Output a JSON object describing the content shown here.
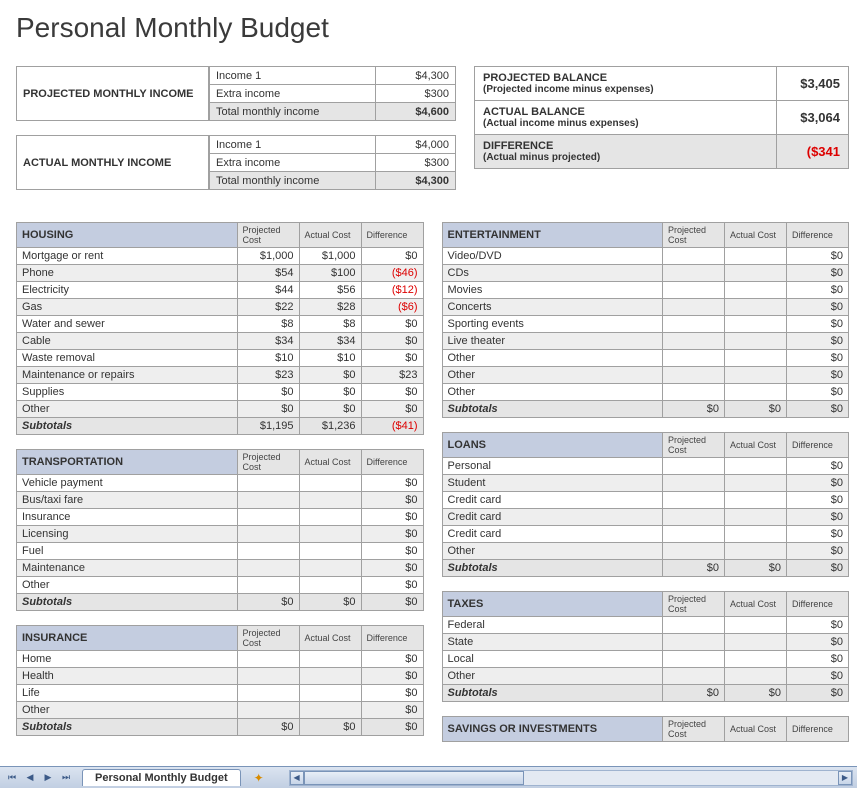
{
  "title": "Personal Monthly Budget",
  "projected_income": {
    "label": "PROJECTED MONTHLY INCOME",
    "rows": [
      {
        "label": "Income 1",
        "value": "$4,300"
      },
      {
        "label": "Extra income",
        "value": "$300"
      }
    ],
    "total_label": "Total monthly income",
    "total_value": "$4,600"
  },
  "actual_income": {
    "label": "ACTUAL MONTHLY INCOME",
    "rows": [
      {
        "label": "Income 1",
        "value": "$4,000"
      },
      {
        "label": "Extra income",
        "value": "$300"
      }
    ],
    "total_label": "Total monthly income",
    "total_value": "$4,300"
  },
  "balances": [
    {
      "title": "PROJECTED BALANCE",
      "sub": "(Projected income minus expenses)",
      "value": "$3,405",
      "neg": false
    },
    {
      "title": "ACTUAL BALANCE",
      "sub": "(Actual income minus expenses)",
      "value": "$3,064",
      "neg": false
    },
    {
      "title": "DIFFERENCE",
      "sub": "(Actual minus projected)",
      "value": "($341",
      "neg": true,
      "diff": true
    }
  ],
  "col_headers": [
    "Projected Cost",
    "Actual Cost",
    "Difference"
  ],
  "left_categories": [
    {
      "name": "HOUSING",
      "rows": [
        {
          "label": "Mortgage or rent",
          "p": "$1,000",
          "a": "$1,000",
          "d": "$0"
        },
        {
          "label": "Phone",
          "p": "$54",
          "a": "$100",
          "d": "($46)",
          "neg": true
        },
        {
          "label": "Electricity",
          "p": "$44",
          "a": "$56",
          "d": "($12)",
          "neg": true
        },
        {
          "label": "Gas",
          "p": "$22",
          "a": "$28",
          "d": "($6)",
          "neg": true
        },
        {
          "label": "Water and sewer",
          "p": "$8",
          "a": "$8",
          "d": "$0"
        },
        {
          "label": "Cable",
          "p": "$34",
          "a": "$34",
          "d": "$0"
        },
        {
          "label": "Waste removal",
          "p": "$10",
          "a": "$10",
          "d": "$0"
        },
        {
          "label": "Maintenance or repairs",
          "p": "$23",
          "a": "$0",
          "d": "$23"
        },
        {
          "label": "Supplies",
          "p": "$0",
          "a": "$0",
          "d": "$0"
        },
        {
          "label": "Other",
          "p": "$0",
          "a": "$0",
          "d": "$0"
        }
      ],
      "subtotal": {
        "p": "$1,195",
        "a": "$1,236",
        "d": "($41)",
        "neg": true
      }
    },
    {
      "name": "TRANSPORTATION",
      "rows": [
        {
          "label": "Vehicle payment",
          "p": "",
          "a": "",
          "d": "$0"
        },
        {
          "label": "Bus/taxi fare",
          "p": "",
          "a": "",
          "d": "$0"
        },
        {
          "label": "Insurance",
          "p": "",
          "a": "",
          "d": "$0"
        },
        {
          "label": "Licensing",
          "p": "",
          "a": "",
          "d": "$0"
        },
        {
          "label": "Fuel",
          "p": "",
          "a": "",
          "d": "$0"
        },
        {
          "label": "Maintenance",
          "p": "",
          "a": "",
          "d": "$0"
        },
        {
          "label": "Other",
          "p": "",
          "a": "",
          "d": "$0"
        }
      ],
      "subtotal": {
        "p": "$0",
        "a": "$0",
        "d": "$0"
      }
    },
    {
      "name": "INSURANCE",
      "rows": [
        {
          "label": "Home",
          "p": "",
          "a": "",
          "d": "$0"
        },
        {
          "label": "Health",
          "p": "",
          "a": "",
          "d": "$0"
        },
        {
          "label": "Life",
          "p": "",
          "a": "",
          "d": "$0"
        },
        {
          "label": "Other",
          "p": "",
          "a": "",
          "d": "$0"
        }
      ],
      "subtotal": {
        "p": "$0",
        "a": "$0",
        "d": "$0"
      }
    }
  ],
  "right_categories": [
    {
      "name": "ENTERTAINMENT",
      "rows": [
        {
          "label": "Video/DVD",
          "p": "",
          "a": "",
          "d": "$0"
        },
        {
          "label": "CDs",
          "p": "",
          "a": "",
          "d": "$0"
        },
        {
          "label": "Movies",
          "p": "",
          "a": "",
          "d": "$0"
        },
        {
          "label": "Concerts",
          "p": "",
          "a": "",
          "d": "$0"
        },
        {
          "label": "Sporting events",
          "p": "",
          "a": "",
          "d": "$0"
        },
        {
          "label": "Live theater",
          "p": "",
          "a": "",
          "d": "$0"
        },
        {
          "label": "Other",
          "p": "",
          "a": "",
          "d": "$0"
        },
        {
          "label": "Other",
          "p": "",
          "a": "",
          "d": "$0"
        },
        {
          "label": "Other",
          "p": "",
          "a": "",
          "d": "$0"
        }
      ],
      "subtotal": {
        "p": "$0",
        "a": "$0",
        "d": "$0"
      }
    },
    {
      "name": "LOANS",
      "rows": [
        {
          "label": "Personal",
          "p": "",
          "a": "",
          "d": "$0"
        },
        {
          "label": "Student",
          "p": "",
          "a": "",
          "d": "$0"
        },
        {
          "label": "Credit card",
          "p": "",
          "a": "",
          "d": "$0"
        },
        {
          "label": "Credit card",
          "p": "",
          "a": "",
          "d": "$0"
        },
        {
          "label": "Credit card",
          "p": "",
          "a": "",
          "d": "$0"
        },
        {
          "label": "Other",
          "p": "",
          "a": "",
          "d": "$0"
        }
      ],
      "subtotal": {
        "p": "$0",
        "a": "$0",
        "d": "$0"
      }
    },
    {
      "name": "TAXES",
      "rows": [
        {
          "label": "Federal",
          "p": "",
          "a": "",
          "d": "$0"
        },
        {
          "label": "State",
          "p": "",
          "a": "",
          "d": "$0"
        },
        {
          "label": "Local",
          "p": "",
          "a": "",
          "d": "$0"
        },
        {
          "label": "Other",
          "p": "",
          "a": "",
          "d": "$0"
        }
      ],
      "subtotal": {
        "p": "$0",
        "a": "$0",
        "d": "$0"
      }
    },
    {
      "name": "SAVINGS OR INVESTMENTS",
      "rows": [],
      "header_only": true
    }
  ],
  "subtotal_label": "Subtotals",
  "sheet_tab": "Personal Monthly Budget",
  "colors": {
    "header_bg": "#c4cde0",
    "alt_bg": "#eeeeee",
    "subtotal_bg": "#e5e5e5",
    "neg": "#d00000",
    "border": "#a0a0a0"
  }
}
